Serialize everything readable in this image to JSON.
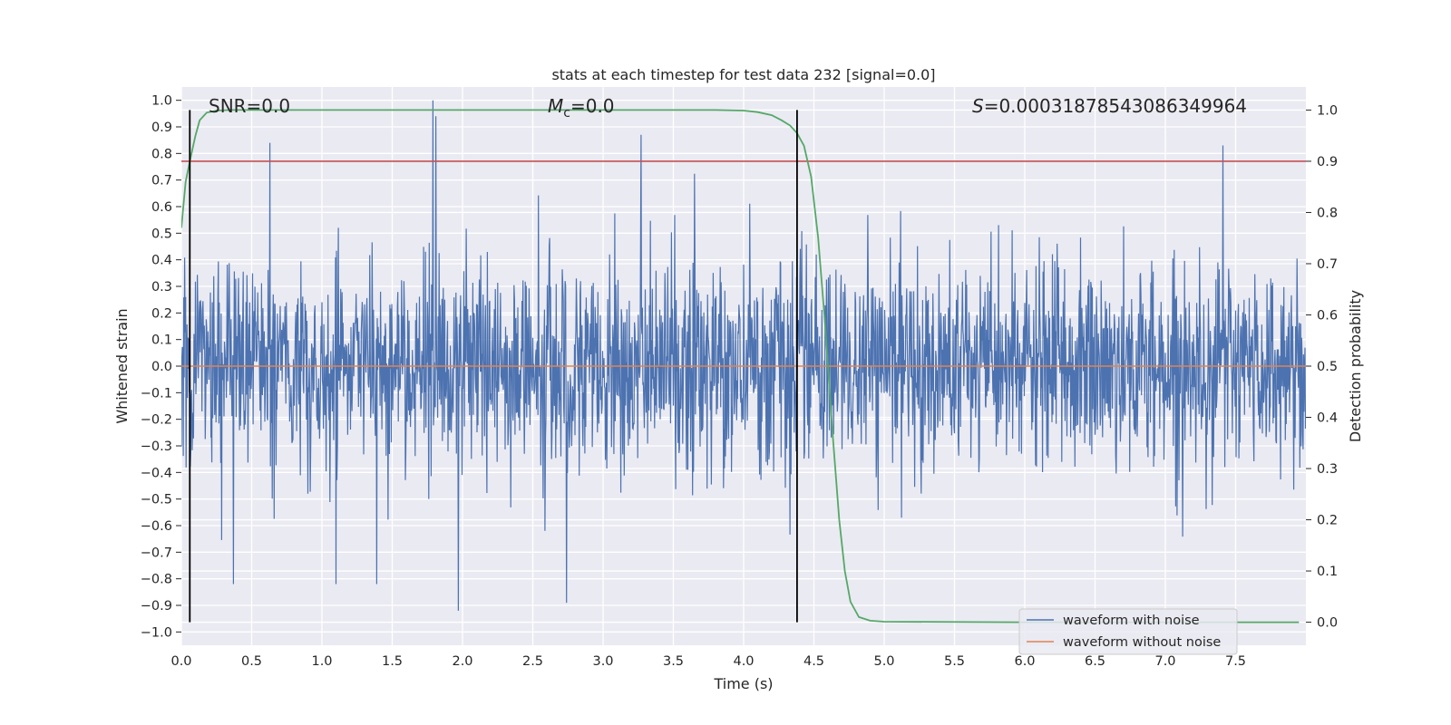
{
  "chart_data": {
    "type": "line",
    "title": "stats at each timestep for test data 232 [signal=0.0]",
    "xlabel": "Time (s)",
    "ylabel": "Whitened strain",
    "y2label": "Detection probability",
    "xlim": [
      0.0,
      8.0
    ],
    "ylim": [
      -1.05,
      1.05
    ],
    "y2lim": [
      -0.045,
      1.045
    ],
    "x_ticks": [
      "0.0",
      "0.5",
      "1.0",
      "1.5",
      "2.0",
      "2.5",
      "3.0",
      "3.5",
      "4.0",
      "4.5",
      "5.0",
      "5.5",
      "6.0",
      "6.5",
      "7.0",
      "7.5"
    ],
    "y_ticks": [
      "1.0",
      "0.9",
      "0.8",
      "0.7",
      "0.6",
      "0.5",
      "0.4",
      "0.3",
      "0.2",
      "0.1",
      "0.0",
      "−0.1",
      "−0.2",
      "−0.3",
      "−0.4",
      "−0.5",
      "−0.6",
      "−0.7",
      "−0.8",
      "−0.9",
      "−1.0"
    ],
    "y2_ticks": [
      "1.0",
      "0.9",
      "0.8",
      "0.7",
      "0.6",
      "0.5",
      "0.4",
      "0.3",
      "0.2",
      "0.1",
      "0.0"
    ],
    "grid": true,
    "legend_position": "bottom-right",
    "annotations": {
      "snr_label": "SNR=0.0",
      "mc_symbol": "M",
      "mc_sub": "c",
      "mc_value": "=0.0",
      "s_symbol": "S",
      "s_value": "=0.00031878543086349964"
    },
    "vertical_lines_x": [
      0.06,
      4.38
    ],
    "threshold_prob": 0.9,
    "series": [
      {
        "name": "waveform with noise",
        "color": "#4c72b0",
        "description_values": "dense whitened noise, mostly within ±0.45, peaks to about 1.0 near t=1.8 and about −0.92 near t=1.97"
      },
      {
        "name": "waveform without noise",
        "color": "#dd8452",
        "values_constant": 0.0
      },
      {
        "color": "#55a868",
        "axis": "right",
        "x": [
          0.0,
          0.03,
          0.06,
          0.1,
          0.13,
          0.18,
          0.25,
          0.35,
          0.5,
          1.0,
          2.0,
          3.0,
          3.8,
          4.0,
          4.1,
          4.2,
          4.27,
          4.33,
          4.38,
          4.43,
          4.48,
          4.53,
          4.58,
          4.63,
          4.68,
          4.72,
          4.76,
          4.82,
          4.9,
          5.0,
          6.0,
          7.0,
          7.95
        ],
        "y": [
          0.77,
          0.86,
          0.9,
          0.95,
          0.98,
          0.995,
          0.999,
          1.0,
          1.0,
          1.0,
          1.0,
          1.0,
          1.0,
          0.999,
          0.996,
          0.99,
          0.98,
          0.97,
          0.955,
          0.93,
          0.87,
          0.75,
          0.58,
          0.38,
          0.2,
          0.1,
          0.04,
          0.01,
          0.003,
          0.001,
          0.0,
          0.0,
          0.0
        ]
      },
      {
        "color": "#c44e52",
        "axis": "right",
        "values_constant": 0.9
      }
    ]
  }
}
